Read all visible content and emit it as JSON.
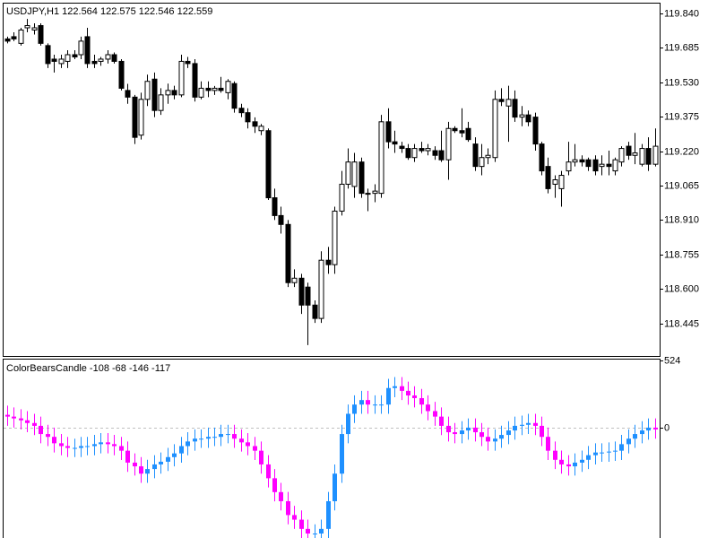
{
  "chart_data": [
    {
      "type": "candlestick",
      "title": "USDJPY,H1 122.564 122.575 122.546 122.559",
      "open": [
        119.725,
        119.735,
        119.705,
        119.775,
        119.765,
        119.785,
        119.695,
        119.634,
        119.614,
        119.624,
        119.654,
        119.654,
        119.735,
        119.624,
        119.624,
        119.634,
        119.654,
        119.624,
        119.493,
        119.463,
        119.292,
        119.453,
        119.544,
        119.403,
        119.473,
        119.493,
        119.473,
        119.624,
        119.614,
        119.463,
        119.503,
        119.493,
        119.503,
        119.483,
        119.524,
        119.413,
        119.393,
        119.352,
        119.312,
        119.312,
        119.01,
        118.93,
        118.89,
        118.628,
        118.648,
        118.608,
        118.527,
        118.467,
        118.729,
        118.709,
        118.95,
        119.071,
        119.061,
        119.171,
        119.03,
        119.03,
        119.03,
        119.352,
        119.262,
        119.242,
        119.232,
        119.191,
        119.232,
        119.222,
        119.222,
        119.222,
        119.181,
        119.322,
        119.312,
        119.322,
        119.252,
        119.151,
        119.191,
        119.191,
        119.453,
        119.423,
        119.453,
        119.373,
        119.383,
        119.373,
        119.252,
        119.151,
        119.071,
        119.051,
        119.131,
        119.171,
        119.181,
        119.181,
        119.181,
        119.151,
        119.161,
        119.131,
        119.171,
        119.242,
        119.201,
        119.161,
        119.232,
        119.161
      ],
      "high": [
        119.735,
        119.755,
        119.775,
        119.815,
        119.795,
        119.795,
        119.705,
        119.654,
        119.654,
        119.674,
        119.674,
        119.735,
        119.775,
        119.654,
        119.644,
        119.674,
        119.664,
        119.634,
        119.523,
        119.473,
        119.483,
        119.564,
        119.574,
        119.503,
        119.524,
        119.514,
        119.654,
        119.644,
        119.634,
        119.534,
        119.534,
        119.513,
        119.554,
        119.544,
        119.534,
        119.433,
        119.413,
        119.372,
        119.342,
        119.322,
        119.051,
        118.97,
        118.91,
        118.688,
        118.668,
        118.628,
        118.548,
        118.769,
        118.789,
        118.97,
        119.131,
        119.232,
        119.212,
        119.191,
        119.051,
        119.071,
        119.383,
        119.413,
        119.312,
        119.262,
        119.252,
        119.252,
        119.262,
        119.252,
        119.242,
        119.312,
        119.352,
        119.332,
        119.413,
        119.352,
        119.282,
        119.252,
        119.232,
        119.493,
        119.503,
        119.514,
        119.493,
        119.423,
        119.403,
        119.393,
        119.262,
        119.191,
        119.111,
        119.131,
        119.262,
        119.252,
        119.201,
        119.191,
        119.201,
        119.201,
        119.222,
        119.191,
        119.242,
        119.262,
        119.302,
        119.252,
        119.282,
        119.322
      ],
      "low": [
        119.705,
        119.715,
        119.695,
        119.755,
        119.745,
        119.695,
        119.594,
        119.574,
        119.594,
        119.594,
        119.634,
        119.634,
        119.594,
        119.594,
        119.604,
        119.614,
        119.614,
        119.493,
        119.433,
        119.252,
        119.272,
        119.423,
        119.373,
        119.383,
        119.433,
        119.453,
        119.463,
        119.594,
        119.443,
        119.453,
        119.463,
        119.473,
        119.483,
        119.453,
        119.393,
        119.373,
        119.322,
        119.302,
        119.292,
        119.0,
        118.91,
        118.849,
        118.608,
        118.608,
        118.487,
        118.347,
        118.447,
        118.447,
        118.668,
        118.668,
        118.93,
        119.051,
        119.01,
        119.01,
        118.95,
        118.99,
        119.01,
        119.232,
        119.212,
        119.212,
        119.181,
        119.171,
        119.212,
        119.201,
        119.181,
        119.171,
        119.091,
        119.302,
        119.282,
        119.262,
        119.131,
        119.111,
        119.161,
        119.171,
        119.423,
        119.262,
        119.352,
        119.332,
        119.332,
        119.222,
        119.111,
        119.03,
        119.01,
        118.97,
        119.111,
        119.151,
        119.151,
        119.131,
        119.111,
        119.111,
        119.111,
        119.111,
        119.151,
        119.181,
        119.161,
        119.151,
        119.131,
        119.151
      ],
      "close": [
        119.715,
        119.725,
        119.765,
        119.785,
        119.775,
        119.705,
        119.614,
        119.624,
        119.634,
        119.654,
        119.644,
        119.715,
        119.614,
        119.614,
        119.634,
        119.654,
        119.624,
        119.503,
        119.463,
        119.282,
        119.453,
        119.534,
        119.403,
        119.473,
        119.493,
        119.473,
        119.624,
        119.614,
        119.463,
        119.503,
        119.493,
        119.503,
        119.493,
        119.534,
        119.413,
        119.393,
        119.352,
        119.332,
        119.332,
        119.01,
        118.93,
        118.89,
        118.628,
        118.648,
        118.527,
        118.527,
        118.467,
        118.729,
        118.709,
        118.95,
        119.071,
        119.171,
        119.171,
        119.03,
        119.03,
        119.04,
        119.352,
        119.262,
        119.252,
        119.232,
        119.191,
        119.232,
        119.222,
        119.232,
        119.201,
        119.181,
        119.322,
        119.312,
        119.302,
        119.272,
        119.151,
        119.191,
        119.201,
        119.453,
        119.443,
        119.453,
        119.373,
        119.383,
        119.352,
        119.252,
        119.131,
        119.051,
        119.091,
        119.111,
        119.171,
        119.181,
        119.171,
        119.151,
        119.131,
        119.161,
        119.151,
        119.181,
        119.232,
        119.201,
        119.212,
        119.232,
        119.161,
        119.242
      ],
      "ylim": [
        118.298,
        119.884
      ],
      "yticks": [
        {
          "value": 119.84,
          "label": "119.840"
        },
        119.685,
        {
          "value": 119.53,
          "label": "119.530"
        },
        119.375,
        {
          "value": 119.22,
          "label": "119.220"
        },
        119.065,
        {
          "value": 118.91,
          "label": "118.910"
        },
        118.755,
        {
          "value": 118.6,
          "label": "118.600"
        },
        118.445
      ],
      "up_color": "#ffffff",
      "down_color": "#000000",
      "wick_color": "#000000"
    },
    {
      "type": "candlestick",
      "title": "ColorBearsCandle -108 -68 -146 -117",
      "open": [
        100,
        86,
        72,
        57,
        36,
        14,
        -50,
        -72,
        -122,
        -144,
        -158,
        -158,
        -144,
        -144,
        -129,
        -115,
        -129,
        -144,
        -180,
        -273,
        -302,
        -359,
        -323,
        -287,
        -266,
        -230,
        -201,
        -144,
        -108,
        -86,
        -86,
        -72,
        -72,
        -50,
        -50,
        -86,
        -115,
        -144,
        -180,
        -287,
        -395,
        -503,
        -574,
        -682,
        -718,
        -790,
        -826,
        -826,
        -790,
        -574,
        -359,
        -50,
        108,
        180,
        215,
        180,
        180,
        180,
        309,
        323,
        287,
        251,
        230,
        180,
        129,
        86,
        14,
        -36,
        -50,
        -22,
        0,
        -36,
        -72,
        -108,
        -86,
        -57,
        -22,
        14,
        22,
        36,
        14,
        -72,
        -180,
        -251,
        -287,
        -302,
        -273,
        -251,
        -215,
        -194,
        -194,
        -187,
        -180,
        -129,
        -86,
        -50,
        -22,
        0
      ],
      "high": [
        172,
        158,
        144,
        129,
        108,
        86,
        22,
        0,
        -50,
        -72,
        -86,
        -72,
        -72,
        -57,
        -43,
        -43,
        -57,
        -72,
        -108,
        -201,
        -230,
        -251,
        -215,
        -194,
        -158,
        -129,
        -72,
        -36,
        -14,
        -14,
        0,
        0,
        22,
        22,
        22,
        -14,
        -43,
        -72,
        -108,
        -215,
        -323,
        -431,
        -502,
        -610,
        -646,
        -718,
        -754,
        -718,
        -502,
        -287,
        22,
        180,
        252,
        287,
        287,
        252,
        252,
        381,
        395,
        395,
        359,
        323,
        302,
        252,
        201,
        158,
        86,
        36,
        50,
        72,
        72,
        36,
        0,
        -14,
        15,
        50,
        86,
        94,
        108,
        108,
        86,
        0,
        -108,
        -179,
        -215,
        -201,
        -179,
        -143,
        -122,
        -122,
        -115,
        -108,
        -57,
        -14,
        22,
        50,
        72,
        72
      ],
      "low": [
        14,
        0,
        -15,
        -36,
        -58,
        -122,
        -144,
        -194,
        -216,
        -230,
        -230,
        -230,
        -216,
        -216,
        -201,
        -201,
        -216,
        -252,
        -345,
        -374,
        -431,
        -431,
        -395,
        -359,
        -338,
        -302,
        -273,
        -216,
        -180,
        -158,
        -158,
        -144,
        -144,
        -122,
        -158,
        -187,
        -216,
        -252,
        -359,
        -467,
        -575,
        -646,
        -754,
        -790,
        -862,
        -898,
        -898,
        -898,
        -862,
        -646,
        -431,
        -122,
        36,
        108,
        108,
        108,
        108,
        108,
        237,
        215,
        179,
        158,
        108,
        57,
        14,
        -58,
        -108,
        -122,
        -122,
        -94,
        -108,
        -144,
        -180,
        -180,
        -158,
        -129,
        -94,
        -58,
        -50,
        -58,
        -144,
        -252,
        -323,
        -359,
        -374,
        -374,
        -345,
        -323,
        -287,
        -266,
        -266,
        -259,
        -252,
        -201,
        -158,
        -122,
        -94,
        -86
      ],
      "close": [
        86,
        72,
        57,
        36,
        14,
        -50,
        -72,
        -122,
        -144,
        -158,
        -158,
        -144,
        -144,
        -129,
        -115,
        -129,
        -144,
        -180,
        -273,
        -302,
        -359,
        -323,
        -287,
        -266,
        -230,
        -201,
        -144,
        -108,
        -86,
        -86,
        -72,
        -72,
        -50,
        -50,
        -86,
        -115,
        -144,
        -180,
        -287,
        -395,
        -503,
        -574,
        -682,
        -718,
        -790,
        -826,
        -826,
        -790,
        -574,
        -359,
        -50,
        108,
        180,
        215,
        180,
        180,
        180,
        309,
        323,
        287,
        251,
        230,
        180,
        129,
        86,
        14,
        -36,
        -50,
        -22,
        0,
        -36,
        -72,
        -108,
        -86,
        -57,
        -22,
        14,
        22,
        36,
        14,
        -72,
        -180,
        -251,
        -287,
        -302,
        -273,
        -251,
        -215,
        -194,
        -194,
        -187,
        -180,
        -129,
        -86,
        -50,
        -22,
        0,
        -14
      ],
      "ylim": [
        -861,
        531
      ],
      "yticks": [
        524,
        0
      ],
      "levels": [
        0
      ],
      "level_color": "#c0c0c0",
      "up_color": "#1e90ff",
      "down_color": "#ff00ff"
    }
  ]
}
